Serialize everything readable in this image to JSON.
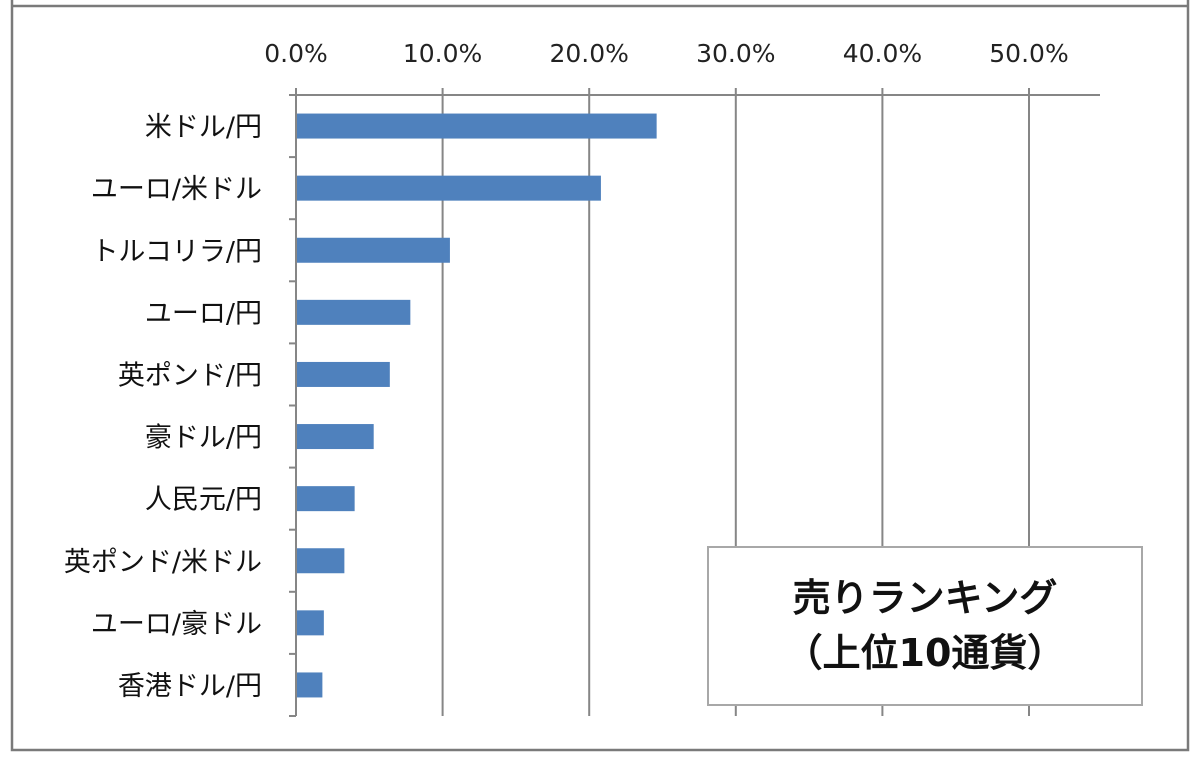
{
  "chart_data": {
    "type": "bar",
    "orientation": "horizontal",
    "title_lines": [
      "売りランキング",
      "（上位10通貨）"
    ],
    "categories": [
      "米ドル/円",
      "ユーロ/米ドル",
      "トルコリラ/円",
      "ユーロ/円",
      "英ポンド/円",
      "豪ドル/円",
      "人民元/円",
      "英ポンド/米ドル",
      "ユーロ/豪ドル",
      "香港ドル/円"
    ],
    "values": [
      24.6,
      20.8,
      10.5,
      7.8,
      6.4,
      5.3,
      4.0,
      3.3,
      1.9,
      1.8
    ],
    "value_unit": "%",
    "xlim": [
      0,
      55
    ],
    "x_ticks": [
      0,
      10,
      20,
      30,
      40,
      50
    ],
    "x_tick_labels": [
      "0.0%",
      "10.0%",
      "20.0%",
      "30.0%",
      "40.0%",
      "50.0%"
    ],
    "x_axis_position": "top",
    "grid": "vertical",
    "bar_color": "#4f81bd",
    "title_box_position": "bottom-right"
  }
}
